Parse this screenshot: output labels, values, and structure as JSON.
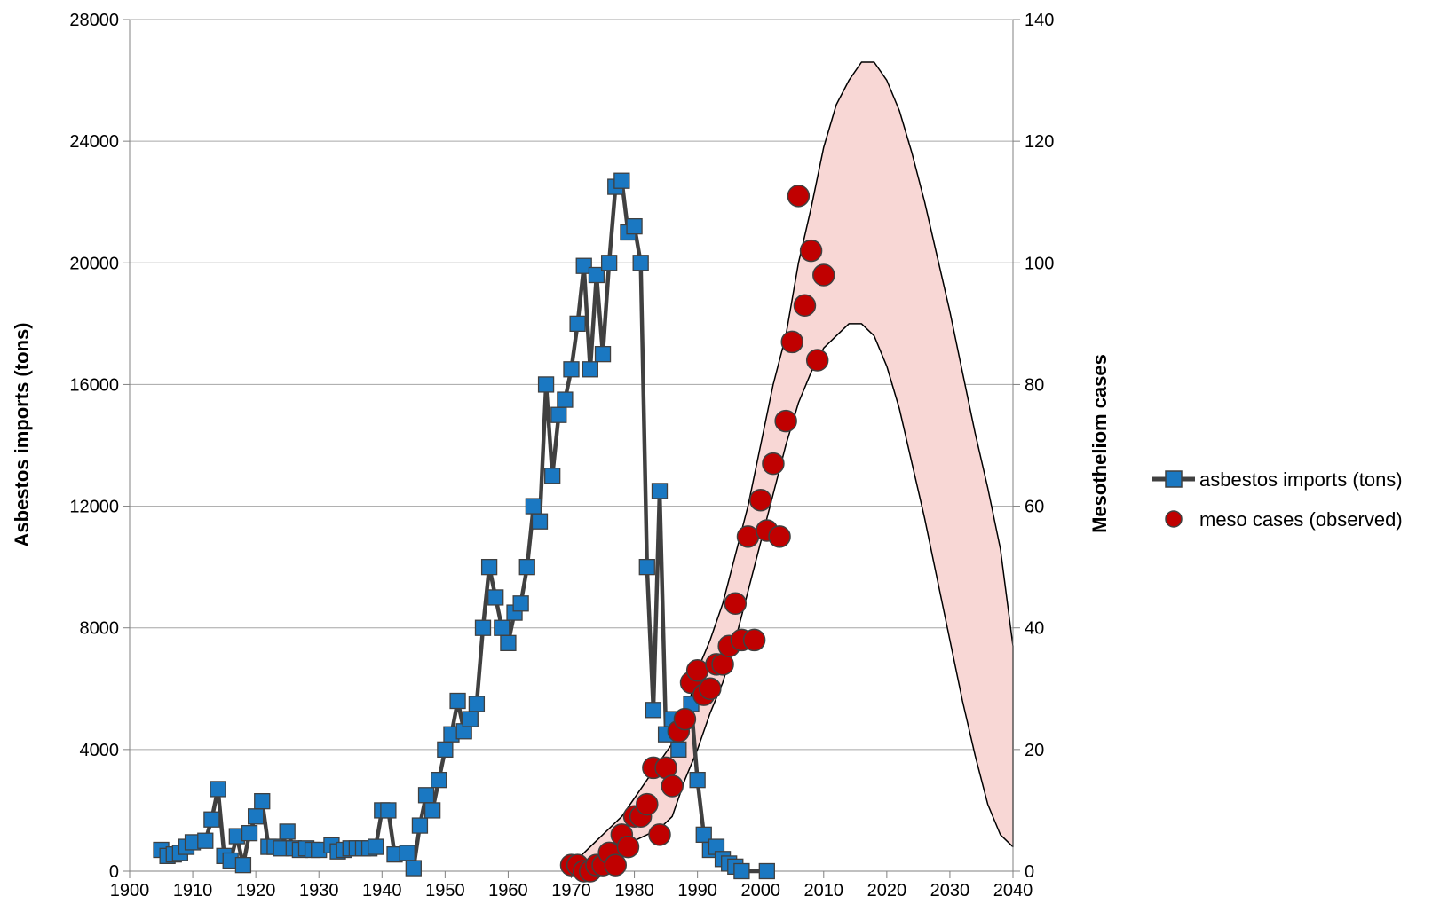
{
  "chart_data": {
    "type": "line",
    "title": "",
    "xlabel": "",
    "ylabel_left": "Asbestos imports (tons)",
    "ylabel_right": "Mesotheliom cases",
    "xlim": [
      1900,
      2040
    ],
    "ylim_left": [
      0,
      28000
    ],
    "ylim_right": [
      0,
      140
    ],
    "x_ticks": [
      "1900",
      "1910",
      "1920",
      "1930",
      "1940",
      "1950",
      "1960",
      "1970",
      "1980",
      "1990",
      "2000",
      "2010",
      "2020",
      "2030",
      "2040"
    ],
    "y_ticks_left": [
      "0",
      "4000",
      "8000",
      "12000",
      "16000",
      "20000",
      "24000",
      "28000"
    ],
    "y_ticks_right": [
      "0",
      "20",
      "40",
      "60",
      "80",
      "100",
      "120",
      "140"
    ],
    "grid": true,
    "legend_position": "right",
    "colors": {
      "imports_line": "#404040",
      "imports_marker": "#1a78c2",
      "meso_marker": "#c00000",
      "band_fill": "#f8d7d5",
      "grid": "#a6a6a6"
    },
    "series": [
      {
        "name": "asbestos imports (tons)",
        "axis": "left",
        "kind": "line-square",
        "points": [
          [
            1905,
            700
          ],
          [
            1906,
            500
          ],
          [
            1907,
            550
          ],
          [
            1908,
            600
          ],
          [
            1909,
            800
          ],
          [
            1910,
            950
          ],
          [
            1912,
            1000
          ],
          [
            1913,
            1700
          ],
          [
            1914,
            2700
          ],
          [
            1915,
            500
          ],
          [
            1916,
            350
          ],
          [
            1917,
            1150
          ],
          [
            1918,
            200
          ],
          [
            1919,
            1250
          ],
          [
            1920,
            1800
          ],
          [
            1921,
            2300
          ],
          [
            1922,
            800
          ],
          [
            1923,
            800
          ],
          [
            1924,
            750
          ],
          [
            1925,
            1300
          ],
          [
            1926,
            750
          ],
          [
            1927,
            700
          ],
          [
            1928,
            750
          ],
          [
            1929,
            700
          ],
          [
            1930,
            700
          ],
          [
            1932,
            850
          ],
          [
            1933,
            650
          ],
          [
            1934,
            700
          ],
          [
            1935,
            750
          ],
          [
            1936,
            750
          ],
          [
            1937,
            750
          ],
          [
            1938,
            750
          ],
          [
            1939,
            800
          ],
          [
            1940,
            2000
          ],
          [
            1941,
            2000
          ],
          [
            1942,
            550
          ],
          [
            1944,
            600
          ],
          [
            1945,
            100
          ],
          [
            1946,
            1500
          ],
          [
            1947,
            2500
          ],
          [
            1948,
            2000
          ],
          [
            1949,
            3000
          ],
          [
            1950,
            4000
          ],
          [
            1951,
            4500
          ],
          [
            1952,
            5600
          ],
          [
            1953,
            4600
          ],
          [
            1954,
            5000
          ],
          [
            1955,
            5500
          ],
          [
            1956,
            8000
          ],
          [
            1957,
            10000
          ],
          [
            1958,
            9000
          ],
          [
            1959,
            8000
          ],
          [
            1960,
            7500
          ],
          [
            1961,
            8500
          ],
          [
            1962,
            8800
          ],
          [
            1963,
            10000
          ],
          [
            1964,
            12000
          ],
          [
            1965,
            11500
          ],
          [
            1966,
            16000
          ],
          [
            1967,
            13000
          ],
          [
            1968,
            15000
          ],
          [
            1969,
            15500
          ],
          [
            1970,
            16500
          ],
          [
            1971,
            18000
          ],
          [
            1972,
            19900
          ],
          [
            1973,
            16500
          ],
          [
            1974,
            19600
          ],
          [
            1975,
            17000
          ],
          [
            1976,
            20000
          ],
          [
            1977,
            22500
          ],
          [
            1978,
            22700
          ],
          [
            1979,
            21000
          ],
          [
            1980,
            21200
          ],
          [
            1981,
            20000
          ],
          [
            1982,
            10000
          ],
          [
            1983,
            5300
          ],
          [
            1984,
            12500
          ],
          [
            1985,
            4500
          ],
          [
            1986,
            5000
          ],
          [
            1987,
            4000
          ],
          [
            1988,
            5000
          ],
          [
            1989,
            5500
          ],
          [
            1990,
            3000
          ],
          [
            1991,
            1200
          ],
          [
            1992,
            700
          ],
          [
            1993,
            800
          ],
          [
            1994,
            400
          ],
          [
            1995,
            250
          ],
          [
            1996,
            150
          ],
          [
            1997,
            0
          ],
          [
            2001,
            0
          ]
        ]
      },
      {
        "name": "meso cases (observed)",
        "axis": "right",
        "kind": "scatter-circle",
        "points": [
          [
            1970,
            1
          ],
          [
            1971,
            1
          ],
          [
            1972,
            0
          ],
          [
            1973,
            0
          ],
          [
            1974,
            1
          ],
          [
            1975,
            1
          ],
          [
            1976,
            3
          ],
          [
            1977,
            1
          ],
          [
            1978,
            6
          ],
          [
            1979,
            4
          ],
          [
            1980,
            9
          ],
          [
            1981,
            9
          ],
          [
            1982,
            11
          ],
          [
            1983,
            17
          ],
          [
            1984,
            6
          ],
          [
            1985,
            17
          ],
          [
            1986,
            14
          ],
          [
            1987,
            23
          ],
          [
            1988,
            25
          ],
          [
            1989,
            31
          ],
          [
            1990,
            33
          ],
          [
            1991,
            29
          ],
          [
            1992,
            30
          ],
          [
            1993,
            34
          ],
          [
            1994,
            34
          ],
          [
            1995,
            37
          ],
          [
            1996,
            44
          ],
          [
            1997,
            38
          ],
          [
            1998,
            55
          ],
          [
            1999,
            38
          ],
          [
            2000,
            61
          ],
          [
            2001,
            56
          ],
          [
            2002,
            67
          ],
          [
            2003,
            55
          ],
          [
            2004,
            74
          ],
          [
            2005,
            87
          ],
          [
            2006,
            111
          ],
          [
            2007,
            93
          ],
          [
            2008,
            102
          ],
          [
            2009,
            84
          ],
          [
            2010,
            98
          ]
        ]
      },
      {
        "name": "",
        "axis": "right",
        "kind": "band",
        "upper": [
          [
            1970,
            1
          ],
          [
            1972,
            3
          ],
          [
            1974,
            5
          ],
          [
            1976,
            7
          ],
          [
            1978,
            9
          ],
          [
            1980,
            12
          ],
          [
            1982,
            15
          ],
          [
            1984,
            18
          ],
          [
            1986,
            21
          ],
          [
            1988,
            25
          ],
          [
            1990,
            33
          ],
          [
            1992,
            38
          ],
          [
            1994,
            44
          ],
          [
            1996,
            52
          ],
          [
            1998,
            60
          ],
          [
            2000,
            70
          ],
          [
            2002,
            80
          ],
          [
            2004,
            88
          ],
          [
            2006,
            100
          ],
          [
            2008,
            109
          ],
          [
            2010,
            119
          ],
          [
            2012,
            126
          ],
          [
            2014,
            130
          ],
          [
            2016,
            133
          ],
          [
            2018,
            133
          ],
          [
            2020,
            130
          ],
          [
            2022,
            125
          ],
          [
            2024,
            118
          ],
          [
            2026,
            110
          ],
          [
            2028,
            101
          ],
          [
            2030,
            92
          ],
          [
            2032,
            82
          ],
          [
            2034,
            72
          ],
          [
            2036,
            63
          ],
          [
            2038,
            53
          ],
          [
            2040,
            37
          ]
        ],
        "lower": [
          [
            1970,
            0
          ],
          [
            1972,
            0
          ],
          [
            1974,
            0
          ],
          [
            1976,
            1
          ],
          [
            1978,
            3
          ],
          [
            1980,
            5
          ],
          [
            1982,
            6
          ],
          [
            1984,
            7
          ],
          [
            1986,
            9
          ],
          [
            1988,
            15
          ],
          [
            1990,
            20
          ],
          [
            1992,
            26
          ],
          [
            1994,
            31
          ],
          [
            1996,
            38
          ],
          [
            1998,
            46
          ],
          [
            2000,
            54
          ],
          [
            2002,
            62
          ],
          [
            2004,
            70
          ],
          [
            2006,
            77
          ],
          [
            2008,
            82
          ],
          [
            2010,
            86
          ],
          [
            2012,
            88
          ],
          [
            2014,
            90
          ],
          [
            2016,
            90
          ],
          [
            2018,
            88
          ],
          [
            2020,
            83
          ],
          [
            2022,
            76
          ],
          [
            2024,
            67
          ],
          [
            2026,
            58
          ],
          [
            2028,
            48
          ],
          [
            2030,
            38
          ],
          [
            2032,
            28
          ],
          [
            2034,
            19
          ],
          [
            2036,
            11
          ],
          [
            2038,
            6
          ],
          [
            2040,
            4
          ]
        ]
      }
    ]
  }
}
